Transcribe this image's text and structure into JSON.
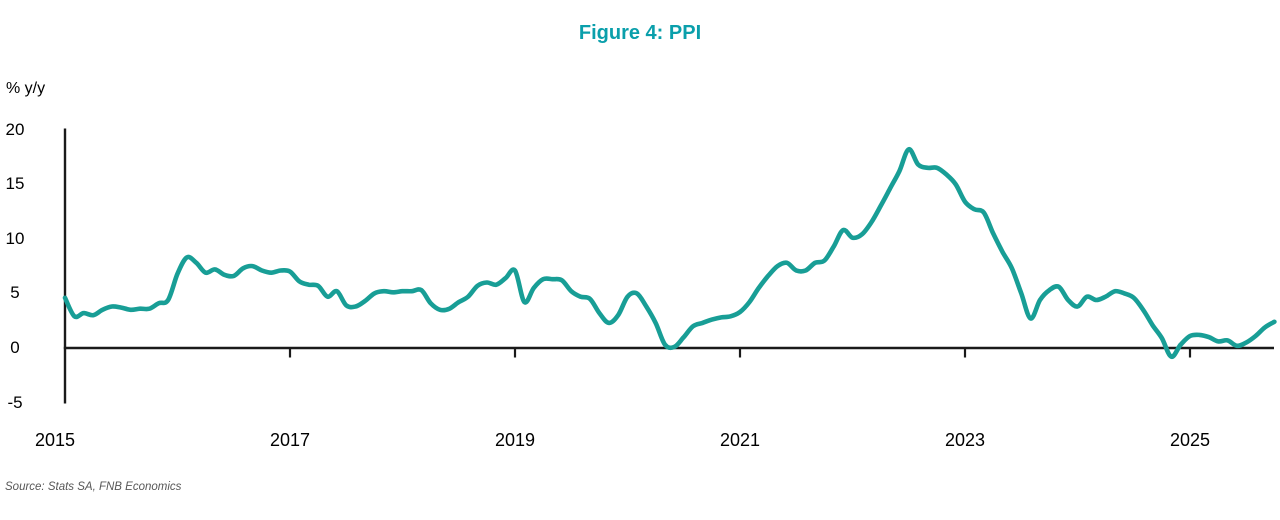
{
  "title": "Figure 4: PPI",
  "y_axis_label": "% y/y",
  "source": "Source: Stats SA, FNB Economics",
  "colors": {
    "accent": "#0a9fab",
    "line": "#189e96",
    "axis": "#1a1a1a",
    "source_text": "#575757"
  },
  "chart_data": {
    "type": "line",
    "title": "Figure 4: PPI",
    "ylabel": "% y/y",
    "xlabel": "",
    "grid": false,
    "legend_position": "none",
    "ylim": [
      -5,
      20
    ],
    "y_ticks": [
      20,
      15,
      10,
      5,
      0,
      -5
    ],
    "x_tick_years": [
      2015,
      2017,
      2019,
      2021,
      2023,
      2025
    ],
    "x_start_year": 2015,
    "points_per_year": 12,
    "x_range_years": [
      2015.0,
      2025.75
    ],
    "series": [
      {
        "name": "PPI % y/y",
        "start_month": "2015-01",
        "frequency": "monthly",
        "values": [
          4.6,
          2.9,
          3.2,
          3.0,
          3.5,
          3.8,
          3.7,
          3.5,
          3.6,
          3.6,
          4.1,
          4.4,
          6.8,
          8.3,
          7.8,
          6.9,
          7.2,
          6.7,
          6.6,
          7.3,
          7.5,
          7.1,
          6.9,
          7.1,
          7.0,
          6.1,
          5.8,
          5.7,
          4.7,
          5.2,
          3.9,
          3.8,
          4.3,
          5.0,
          5.2,
          5.1,
          5.2,
          5.2,
          5.3,
          4.1,
          3.5,
          3.6,
          4.2,
          4.7,
          5.7,
          6.0,
          5.8,
          6.4,
          7.1,
          4.2,
          5.5,
          6.3,
          6.3,
          6.2,
          5.2,
          4.7,
          4.5,
          3.2,
          2.3,
          3.0,
          4.7,
          5.0,
          3.8,
          2.3,
          0.3,
          0.1,
          1.0,
          2.0,
          2.3,
          2.6,
          2.8,
          2.9,
          3.3,
          4.2,
          5.5,
          6.6,
          7.5,
          7.8,
          7.1,
          7.1,
          7.8,
          8.0,
          9.3,
          10.8,
          10.1,
          10.4,
          11.5,
          13.0,
          14.6,
          16.2,
          18.2,
          16.8,
          16.5,
          16.5,
          15.9,
          15.0,
          13.4,
          12.7,
          12.4,
          10.5,
          8.8,
          7.3,
          5.0,
          2.7,
          4.4,
          5.3,
          5.6,
          4.4,
          3.8,
          4.7,
          4.4,
          4.7,
          5.2,
          5.0,
          4.6,
          3.5,
          2.1,
          0.9,
          -0.8,
          0.3,
          1.1,
          1.2,
          1.0,
          0.6,
          0.7,
          0.2,
          0.5,
          1.1,
          1.9,
          2.4
        ]
      }
    ]
  }
}
